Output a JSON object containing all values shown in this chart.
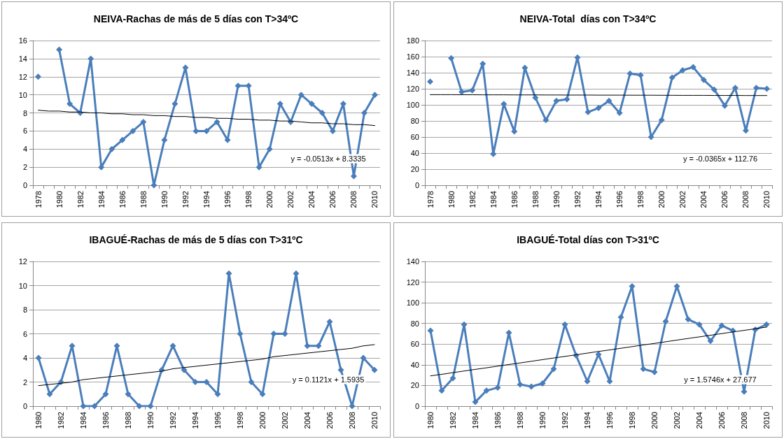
{
  "chart_data": [
    {
      "type": "line",
      "title": "NEIVA-Rachas de más de 5 días con T>34ºC",
      "categories": [
        "1978",
        null,
        "1980",
        null,
        "1982",
        null,
        "1984",
        null,
        "1986",
        null,
        "1988",
        null,
        "1990",
        null,
        "1992",
        null,
        "1994",
        null,
        "1996",
        null,
        "1998",
        null,
        "2000",
        null,
        "2002",
        null,
        "2004",
        null,
        "2006",
        null,
        "2008",
        null,
        "2010"
      ],
      "series": [
        {
          "color": "#4a7ebb",
          "values": [
            12,
            null,
            15,
            9,
            8,
            14,
            2,
            4,
            5,
            6,
            7,
            0,
            5,
            9,
            13,
            6,
            6,
            7,
            5,
            11,
            11,
            2,
            4,
            9,
            7,
            10,
            9,
            8,
            6,
            9,
            1,
            8,
            10
          ]
        },
        {
          "type": "line",
          "color": "#000000",
          "marker": "none",
          "values": [
            8.3,
            8.2,
            8.2,
            8.1,
            8.1,
            8.0,
            8.0,
            7.9,
            7.9,
            7.8,
            7.8,
            7.7,
            7.7,
            7.6,
            7.6,
            7.5,
            7.5,
            7.4,
            7.4,
            7.3,
            7.3,
            7.2,
            7.2,
            7.1,
            7.1,
            7.0,
            6.9,
            6.9,
            6.8,
            6.8,
            6.7,
            6.7,
            6.6
          ]
        }
      ],
      "ylim": [
        0,
        16
      ],
      "yticks": [
        0,
        2,
        4,
        6,
        8,
        10,
        12,
        14,
        16
      ],
      "grid": "y",
      "marker": "diamond",
      "annotations": [
        "y = -0.0513x + 8.3335"
      ]
    },
    {
      "type": "line",
      "title": "NEIVA-Total  días con T>34ºC",
      "categories": [
        "1978",
        null,
        "1980",
        null,
        "1982",
        null,
        "1984",
        null,
        "1986",
        null,
        "1988",
        null,
        "1990",
        null,
        "1992",
        null,
        "1994",
        null,
        "1996",
        null,
        "1998",
        null,
        "2000",
        null,
        "2002",
        null,
        "2004",
        null,
        "2006",
        null,
        "2008",
        null,
        "2010"
      ],
      "series": [
        {
          "color": "#4a7ebb",
          "values": [
            129,
            null,
            158,
            116,
            118,
            151,
            39,
            101,
            67,
            146,
            109,
            81,
            105,
            107,
            159,
            91,
            96,
            105,
            90,
            139,
            137,
            60,
            81,
            134,
            143,
            147,
            131,
            119,
            99,
            121,
            68,
            121,
            120
          ]
        },
        {
          "type": "line",
          "color": "#000000",
          "marker": "none",
          "values": [
            112.7,
            112.7,
            112.7,
            112.6,
            112.6,
            112.5,
            112.5,
            112.5,
            112.4,
            112.4,
            112.4,
            112.3,
            112.3,
            112.2,
            112.2,
            112.2,
            112.1,
            112.1,
            112.1,
            112.0,
            112.0,
            112.0,
            111.9,
            111.9,
            111.8,
            111.8,
            111.8,
            111.7,
            111.7,
            111.7,
            111.6,
            111.6,
            111.6
          ]
        }
      ],
      "ylim": [
        0,
        180
      ],
      "yticks": [
        0,
        20,
        40,
        60,
        80,
        100,
        120,
        140,
        160,
        180
      ],
      "grid": "y",
      "marker": "diamond",
      "annotations": [
        "y = -0.0365x + 112.76"
      ]
    },
    {
      "type": "line",
      "title": "IBAGUÉ-Rachas de más de 5 días con T>31ºC",
      "categories": [
        "1980",
        null,
        "1982",
        null,
        "1984",
        null,
        "1986",
        null,
        "1988",
        null,
        "1990",
        null,
        "1992",
        null,
        "1994",
        null,
        "1996",
        null,
        "1998",
        null,
        "2000",
        null,
        "2002",
        null,
        "2004",
        null,
        "2006",
        null,
        "2008",
        null,
        "2010"
      ],
      "series": [
        {
          "color": "#4a7ebb",
          "values": [
            4,
            1,
            2,
            5,
            0,
            0,
            1,
            5,
            1,
            0,
            0,
            3,
            5,
            3,
            2,
            2,
            1,
            11,
            6,
            2,
            1,
            6,
            6,
            11,
            5,
            5,
            7,
            3,
            0,
            4,
            3
          ]
        },
        {
          "type": "line",
          "color": "#000000",
          "marker": "none",
          "values": [
            1.7,
            1.8,
            1.9,
            2.0,
            2.2,
            2.3,
            2.4,
            2.5,
            2.6,
            2.7,
            2.8,
            2.9,
            3.1,
            3.2,
            3.3,
            3.4,
            3.5,
            3.6,
            3.7,
            3.8,
            3.9,
            4.1,
            4.2,
            4.3,
            4.4,
            4.5,
            4.6,
            4.7,
            4.8,
            5.0,
            5.1
          ]
        }
      ],
      "ylim": [
        0,
        12
      ],
      "yticks": [
        0,
        2,
        4,
        6,
        8,
        10,
        12
      ],
      "grid": "y",
      "marker": "diamond",
      "annotations": [
        "y = 0.1121x + 1.5935"
      ]
    },
    {
      "type": "line",
      "title": "IBAGUÉ-Total días con T>31ºC",
      "categories": [
        "1980",
        null,
        "1982",
        null,
        "1984",
        null,
        "1986",
        null,
        "1988",
        null,
        "1990",
        null,
        "1992",
        null,
        "1994",
        null,
        "1996",
        null,
        "1998",
        null,
        "2000",
        null,
        "2002",
        null,
        "2004",
        null,
        "2006",
        null,
        "2008",
        null,
        "2010"
      ],
      "series": [
        {
          "color": "#4a7ebb",
          "values": [
            73,
            15,
            27,
            79,
            4,
            15,
            18,
            71,
            21,
            19,
            22,
            36,
            79,
            49,
            24,
            50,
            24,
            86,
            116,
            36,
            33,
            82,
            116,
            84,
            79,
            63,
            78,
            73,
            14,
            74,
            79
          ]
        },
        {
          "type": "line",
          "color": "#000000",
          "marker": "none",
          "values": [
            29.3,
            30.8,
            32.4,
            34.0,
            35.6,
            37.1,
            38.7,
            40.3,
            41.8,
            43.4,
            45.0,
            46.6,
            48.1,
            49.7,
            51.3,
            52.9,
            54.4,
            56.0,
            57.6,
            59.2,
            60.7,
            62.3,
            63.9,
            65.5,
            67.0,
            68.6,
            70.2,
            71.8,
            73.3,
            74.9,
            76.5
          ]
        }
      ],
      "ylim": [
        0,
        140
      ],
      "yticks": [
        0,
        20,
        40,
        60,
        80,
        100,
        120,
        140
      ],
      "grid": "y",
      "marker": "diamond",
      "annotations": [
        "y = 1.5746x + 27.677"
      ]
    }
  ]
}
